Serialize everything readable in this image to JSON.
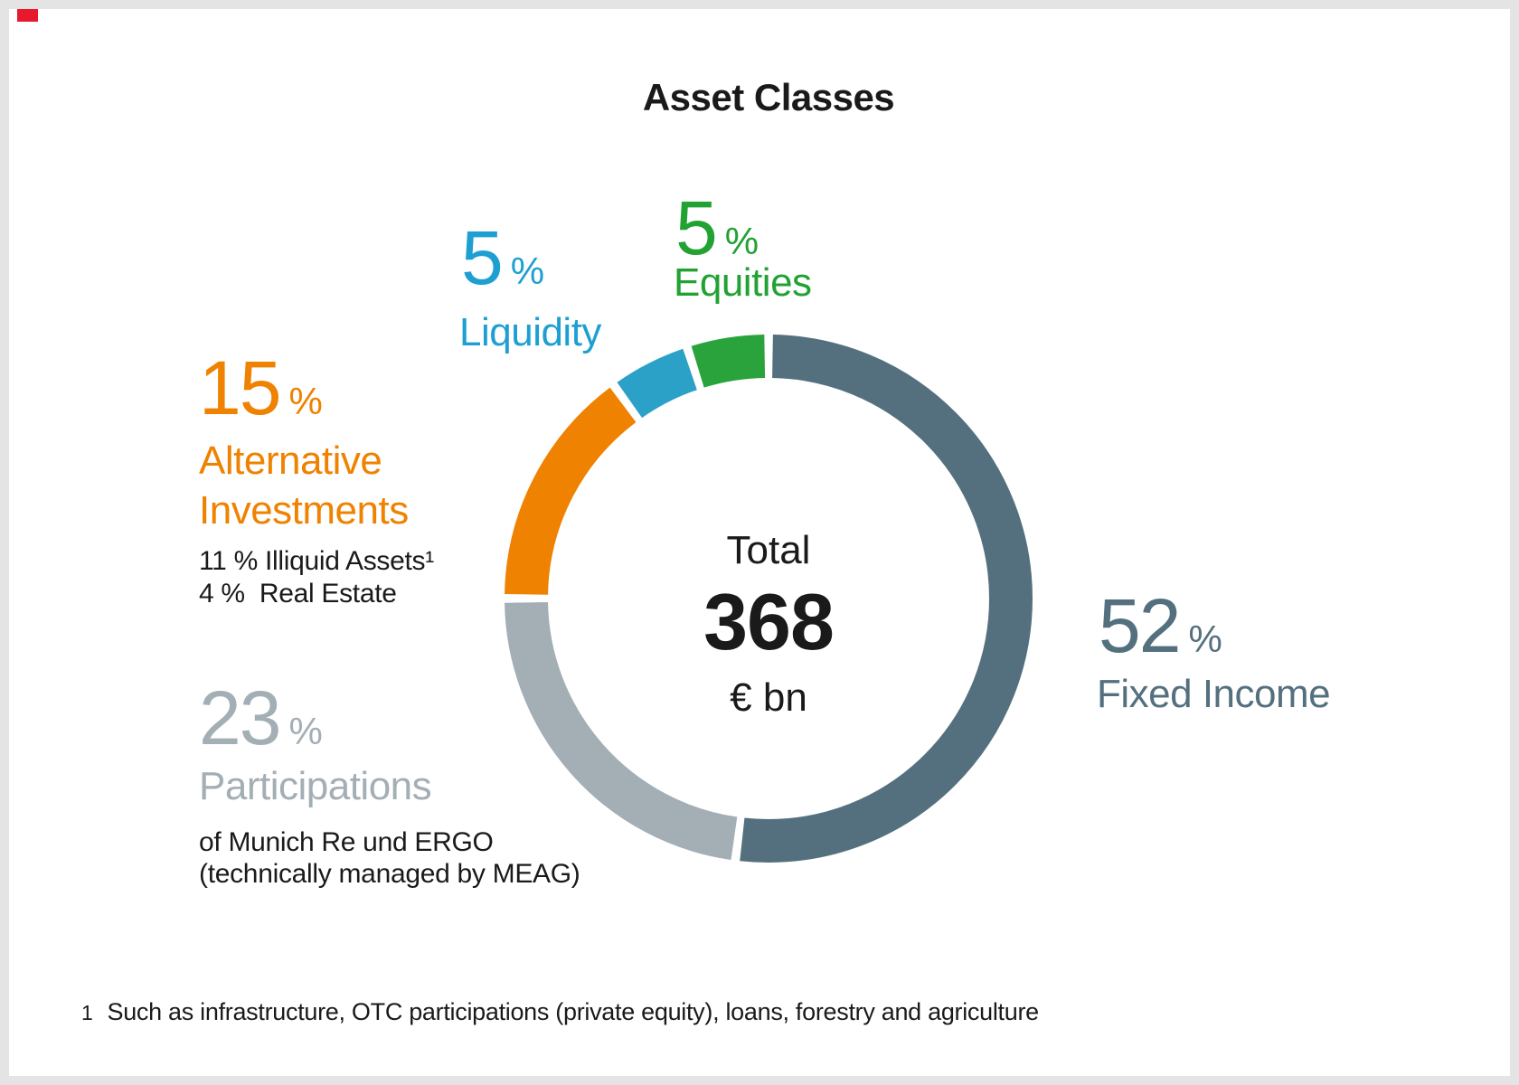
{
  "page": {
    "title": "Asset Classes",
    "footnote_marker": "1",
    "footnote_text": "Such as infrastructure, OTC participations (private equity), loans, forestry and agriculture"
  },
  "center": {
    "label": "Total",
    "value": "368",
    "unit": "€ bn"
  },
  "colors": {
    "text": "#1a1a1a",
    "fixed_income": "#54707f",
    "participations": "#a3aeb5",
    "alternative": "#ef8200",
    "liquidity_label": "#1e9fd2",
    "liquidity_segment": "#2ba1c8",
    "equities_label": "#21a233",
    "equities_segment": "#2aa33c",
    "logo_red": "#e8192c",
    "segment_gap": "#ffffff"
  },
  "labels": {
    "equities": {
      "value": "5",
      "pct": "%",
      "name": "Equities"
    },
    "liquidity": {
      "value": "5",
      "pct": "%",
      "name": "Liquidity"
    },
    "alternative": {
      "value": "15",
      "pct": "%",
      "name_line1": "Alternative",
      "name_line2": "Investments",
      "sub1": "11 % Illiquid Assets¹",
      "sub2": "4 %  Real Estate"
    },
    "participations": {
      "value": "23",
      "pct": "%",
      "name": "Participations",
      "sub1": "of Munich Re und ERGO",
      "sub2": "(technically managed by MEAG)"
    },
    "fixed_income": {
      "value": "52",
      "pct": "%",
      "name": "Fixed Income"
    }
  },
  "chart_data": {
    "type": "pie",
    "donut": true,
    "title": "Asset Classes",
    "total_value": 368,
    "unit": "€ bn",
    "center_text": [
      "Total",
      "368",
      "€ bn"
    ],
    "start_angle_deg": 0,
    "direction": "clockwise",
    "legend_position": "around-chart",
    "segments": [
      {
        "label": "Fixed Income",
        "value_pct": 52,
        "color": "#54707f"
      },
      {
        "label": "Participations",
        "value_pct": 23,
        "color": "#a3aeb5"
      },
      {
        "label": "Alternative Investments",
        "value_pct": 15,
        "color": "#ef8200"
      },
      {
        "label": "Liquidity",
        "value_pct": 5,
        "color": "#2ba1c8"
      },
      {
        "label": "Equities",
        "value_pct": 5,
        "color": "#2aa33c"
      }
    ],
    "annotations": [
      "11 % Illiquid Assets¹",
      "4 % Real Estate",
      "of Munich Re und ERGO (technically managed by MEAG)"
    ]
  }
}
